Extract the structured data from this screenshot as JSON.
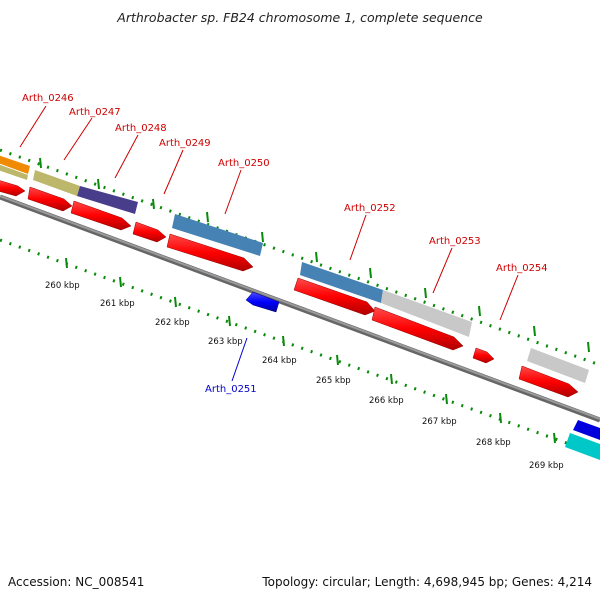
{
  "title": "Arthrobacter sp. FB24 chromosome 1, complete sequence",
  "footer": {
    "accession": "Accession: NC_008541",
    "summary": "Topology: circular; Length: 4,698,945 bp; Genes: 4,214"
  },
  "colors": {
    "cds": "#ff0000",
    "forward_label": "#cc0000",
    "reverse_label": "#0000cc",
    "reverse_cds": "#0000ff",
    "tick": "#006600",
    "backbone": "#888888"
  },
  "gene_labels": [
    {
      "name": "Arth_0246",
      "strand": "forward"
    },
    {
      "name": "Arth_0247",
      "strand": "forward"
    },
    {
      "name": "Arth_0248",
      "strand": "forward"
    },
    {
      "name": "Arth_0249",
      "strand": "forward"
    },
    {
      "name": "Arth_0250",
      "strand": "forward"
    },
    {
      "name": "Arth_0251",
      "strand": "reverse"
    },
    {
      "name": "Arth_0252",
      "strand": "forward"
    },
    {
      "name": "Arth_0253",
      "strand": "forward"
    },
    {
      "name": "Arth_0254",
      "strand": "forward"
    }
  ],
  "kbp_labels": [
    "260 kbp",
    "261 kbp",
    "262 kbp",
    "263 kbp",
    "264 kbp",
    "265 kbp",
    "266 kbp",
    "267 kbp",
    "268 kbp",
    "269 kbp"
  ],
  "feature_colors": {
    "orange": "#f08a00",
    "khaki": "#bdb76b",
    "slate": "#483d8b",
    "steel": "#4682b4",
    "silver": "#c8c8c8",
    "cyan": "#00c8c8"
  }
}
